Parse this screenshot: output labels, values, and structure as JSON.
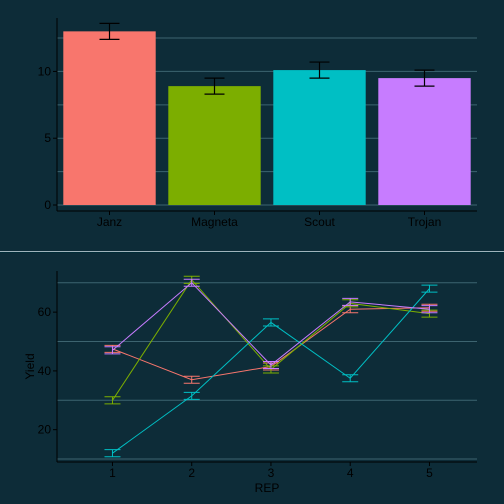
{
  "colors": {
    "background": "#0d2c38",
    "grid": "#3d6470",
    "axis": "#000000",
    "series": [
      "#f8766d",
      "#7cae00",
      "#00bfc4",
      "#c77cff"
    ]
  },
  "chart_data": [
    {
      "type": "bar",
      "title": "",
      "xlabel": "",
      "ylabel": "",
      "categories": [
        "Janz",
        "Magneta",
        "Scout",
        "Trojan"
      ],
      "values": [
        13.0,
        8.9,
        10.1,
        9.5
      ],
      "errors": [
        0.6,
        0.6,
        0.6,
        0.6
      ],
      "ylim": [
        0,
        14
      ],
      "yticks": [
        0,
        5,
        10
      ],
      "grid": true,
      "error_bars": true,
      "legend": "none"
    },
    {
      "type": "line",
      "title": "",
      "xlabel": "REP",
      "ylabel": "Yield",
      "x": [
        1,
        2,
        3,
        4,
        5
      ],
      "xlim": [
        0.3,
        5.6
      ],
      "ylim": [
        9,
        74
      ],
      "yticks": [
        20,
        40,
        60
      ],
      "grid": true,
      "error_bars": true,
      "legend": "none",
      "series": [
        {
          "values": [
            47.5,
            37.0,
            41.5,
            61.0,
            61.5
          ],
          "errors": [
            1.2,
            1.2,
            1.2,
            1.2,
            1.2
          ]
        },
        {
          "values": [
            30.0,
            71.0,
            40.5,
            63.0,
            59.5
          ],
          "errors": [
            1.2,
            1.2,
            1.2,
            1.2,
            1.2
          ]
        },
        {
          "values": [
            12.0,
            31.5,
            56.5,
            37.5,
            68.0
          ],
          "errors": [
            1.2,
            1.2,
            1.2,
            1.2,
            1.2
          ]
        },
        {
          "values": [
            47.0,
            70.0,
            42.0,
            63.5,
            61.0
          ],
          "errors": [
            1.2,
            1.2,
            1.2,
            1.2,
            1.2
          ]
        }
      ]
    }
  ]
}
